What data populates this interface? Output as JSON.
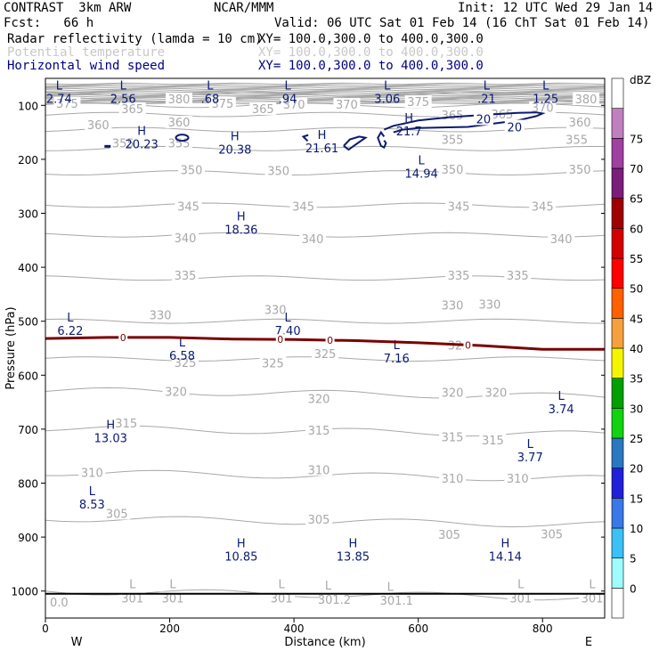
{
  "header": {
    "model": "CONTRAST  3km ARW",
    "org": "NCAR/MMM",
    "init": "Init: 12 UTC Wed 29 Jan 14",
    "fcst": "Fcst:   66 h",
    "valid": "Valid: 06 UTC Sat 01 Feb 14 (16 ChT Sat 01 Feb 14)",
    "field1": "Radar reflectivity (lamda = 10 cm)",
    "field1_xy": "XY= 100.0,300.0 to 400.0,300.0",
    "field2": "Potential temperature",
    "field2_xy": "XY= 100.0,300.0 to 400.0,300.0",
    "field3": "Horizontal wind speed",
    "field3_xy": "XY= 100.0,300.0 to 400.0,300.0"
  },
  "colors": {
    "theta": "#a8a8a8",
    "wind": "#0a1a70",
    "freezing": "#7a0000",
    "terrain": "#000000"
  },
  "chart_data": {
    "type": "cross-section",
    "title": "Radar reflectivity, Potential temperature, Horizontal wind speed",
    "xlabel": "Distance (km)",
    "ylabel": "Pressure (hPa)",
    "xlim": [
      0,
      900
    ],
    "ylim": [
      1050,
      50
    ],
    "x_ticks": [
      0,
      200,
      400,
      600,
      800
    ],
    "y_ticks": [
      100,
      200,
      300,
      400,
      500,
      600,
      700,
      800,
      900,
      1000
    ],
    "left_end": "W",
    "right_end": "E",
    "colorbar": {
      "unit": "dBZ",
      "levels": [
        0,
        5,
        10,
        15,
        20,
        25,
        30,
        35,
        40,
        45,
        50,
        55,
        60,
        65,
        70,
        75
      ],
      "colors": [
        "#ffffff",
        "#9ffcfc",
        "#3dc0f5",
        "#3a78e8",
        "#2020d8",
        "#2c78c0",
        "#12d212",
        "#00a000",
        "#f5f500",
        "#f5a040",
        "#ff6000",
        "#ff0000",
        "#d20000",
        "#a00000",
        "#7a1e7a",
        "#a040a0",
        "#c080c0",
        "#ffffff"
      ]
    },
    "theta_contours": [
      {
        "value": 300,
        "p": 1000
      },
      {
        "value": 305,
        "p": 865
      },
      {
        "value": 310,
        "p": 780
      },
      {
        "value": 315,
        "p": 698
      },
      {
        "value": 320,
        "p": 628
      },
      {
        "value": 325,
        "p": 570
      },
      {
        "value": 330,
        "p": 500
      },
      {
        "value": 335,
        "p": 420
      },
      {
        "value": 340,
        "p": 340
      },
      {
        "value": 345,
        "p": 285
      },
      {
        "value": 350,
        "p": 225
      },
      {
        "value": 355,
        "p": 180
      },
      {
        "value": 360,
        "p": 145
      },
      {
        "value": 365,
        "p": 117
      },
      {
        "value": 370,
        "p": 100
      },
      {
        "value": 375,
        "p": 90
      },
      {
        "value": 380,
        "p": 80
      }
    ],
    "theta_labels": [
      {
        "text": "375",
        "x": 35,
        "p": 96
      },
      {
        "text": "365",
        "x": 140,
        "p": 106
      },
      {
        "text": "380",
        "x": 215,
        "p": 88
      },
      {
        "text": "375",
        "x": 285,
        "p": 96
      },
      {
        "text": "365",
        "x": 350,
        "p": 106
      },
      {
        "text": "370",
        "x": 400,
        "p": 98
      },
      {
        "text": "370",
        "x": 485,
        "p": 98
      },
      {
        "text": "375",
        "x": 600,
        "p": 93
      },
      {
        "text": "365",
        "x": 735,
        "p": 116
      },
      {
        "text": "370",
        "x": 800,
        "p": 104
      },
      {
        "text": "380",
        "x": 870,
        "p": 88
      },
      {
        "text": "360",
        "x": 85,
        "p": 136
      },
      {
        "text": "360",
        "x": 215,
        "p": 131
      },
      {
        "text": "365",
        "x": 655,
        "p": 118
      },
      {
        "text": "360",
        "x": 860,
        "p": 131
      },
      {
        "text": "355",
        "x": 125,
        "p": 170
      },
      {
        "text": "355",
        "x": 215,
        "p": 170
      },
      {
        "text": "355",
        "x": 655,
        "p": 163
      },
      {
        "text": "355",
        "x": 855,
        "p": 163
      },
      {
        "text": "350",
        "x": 235,
        "p": 219
      },
      {
        "text": "350",
        "x": 375,
        "p": 221
      },
      {
        "text": "350",
        "x": 655,
        "p": 218
      },
      {
        "text": "350",
        "x": 860,
        "p": 218
      },
      {
        "text": "345",
        "x": 230,
        "p": 287
      },
      {
        "text": "345",
        "x": 415,
        "p": 287
      },
      {
        "text": "345",
        "x": 665,
        "p": 287
      },
      {
        "text": "345",
        "x": 800,
        "p": 287
      },
      {
        "text": "340",
        "x": 225,
        "p": 345
      },
      {
        "text": "340",
        "x": 430,
        "p": 347
      },
      {
        "text": "340",
        "x": 830,
        "p": 347
      },
      {
        "text": "335",
        "x": 225,
        "p": 415
      },
      {
        "text": "335",
        "x": 665,
        "p": 415
      },
      {
        "text": "335",
        "x": 760,
        "p": 415
      },
      {
        "text": "330",
        "x": 185,
        "p": 488
      },
      {
        "text": "330",
        "x": 370,
        "p": 478
      },
      {
        "text": "330",
        "x": 655,
        "p": 470
      },
      {
        "text": "330",
        "x": 715,
        "p": 468
      },
      {
        "text": "325",
        "x": 225,
        "p": 576
      },
      {
        "text": "325",
        "x": 366,
        "p": 577
      },
      {
        "text": "325",
        "x": 450,
        "p": 560
      },
      {
        "text": "325",
        "x": 665,
        "p": 544
      },
      {
        "text": "320",
        "x": 210,
        "p": 630
      },
      {
        "text": "320",
        "x": 440,
        "p": 643
      },
      {
        "text": "320",
        "x": 655,
        "p": 632
      },
      {
        "text": "320",
        "x": 725,
        "p": 632
      },
      {
        "text": "315",
        "x": 130,
        "p": 689
      },
      {
        "text": "315",
        "x": 440,
        "p": 702
      },
      {
        "text": "315",
        "x": 655,
        "p": 714
      },
      {
        "text": "315",
        "x": 720,
        "p": 720
      },
      {
        "text": "310",
        "x": 75,
        "p": 780
      },
      {
        "text": "310",
        "x": 440,
        "p": 775
      },
      {
        "text": "310",
        "x": 655,
        "p": 791
      },
      {
        "text": "310",
        "x": 760,
        "p": 791
      },
      {
        "text": "305",
        "x": 115,
        "p": 856
      },
      {
        "text": "305",
        "x": 440,
        "p": 867
      },
      {
        "text": "305",
        "x": 650,
        "p": 895
      },
      {
        "text": "305",
        "x": 815,
        "p": 894
      },
      {
        "text": "301",
        "x": 140,
        "p": 1013
      },
      {
        "text": "301",
        "x": 205,
        "p": 1013
      },
      {
        "text": "301",
        "x": 380,
        "p": 1013
      },
      {
        "text": "301.2",
        "x": 465,
        "p": 1015
      },
      {
        "text": "301.1",
        "x": 565,
        "p": 1017
      },
      {
        "text": "301",
        "x": 765,
        "p": 1013
      },
      {
        "text": "301",
        "x": 880,
        "p": 1013
      },
      {
        "text": "0.0",
        "x": 22,
        "p": 1020
      }
    ],
    "theta_extrema": [
      {
        "mark": "L",
        "x": 140,
        "p": 995
      },
      {
        "mark": "L",
        "x": 205,
        "p": 995
      },
      {
        "mark": "L",
        "x": 380,
        "p": 995
      },
      {
        "mark": "L",
        "x": 455,
        "p": 997
      },
      {
        "mark": "L",
        "x": 555,
        "p": 1000
      },
      {
        "mark": "L",
        "x": 765,
        "p": 995
      },
      {
        "mark": "L",
        "x": 880,
        "p": 995
      }
    ],
    "wind_contour_labels": [
      {
        "text": "20",
        "x": 705,
        "p": 125
      },
      {
        "text": "20",
        "x": 755,
        "p": 140
      }
    ],
    "wind_extrema": [
      {
        "mark": "L",
        "value": "2.74",
        "x": 22,
        "p": 87
      },
      {
        "mark": "L",
        "value": "2.56",
        "x": 125,
        "p": 87
      },
      {
        "mark": "L",
        "value": ".68",
        "x": 265,
        "p": 87
      },
      {
        "mark": "L",
        "value": ".94",
        "x": 390,
        "p": 87
      },
      {
        "mark": "L",
        "value": "3.06",
        "x": 550,
        "p": 87
      },
      {
        "mark": "L",
        "value": ".21",
        "x": 710,
        "p": 87
      },
      {
        "mark": "L",
        "value": "1.25",
        "x": 805,
        "p": 87
      },
      {
        "mark": "H",
        "value": "20.23",
        "x": 155,
        "p": 171
      },
      {
        "mark": "H",
        "value": "20.38",
        "x": 305,
        "p": 181
      },
      {
        "mark": "H",
        "value": "21.61",
        "x": 445,
        "p": 179
      },
      {
        "mark": "H",
        "value": "21.7",
        "x": 585,
        "p": 147
      },
      {
        "mark": "L",
        "value": "14.94",
        "x": 605,
        "p": 226
      },
      {
        "mark": "H",
        "value": "18.36",
        "x": 315,
        "p": 330
      },
      {
        "mark": "L",
        "value": "6.22",
        "x": 40,
        "p": 517
      },
      {
        "mark": "L",
        "value": "7.40",
        "x": 390,
        "p": 517
      },
      {
        "mark": "L",
        "value": "6.58",
        "x": 220,
        "p": 563
      },
      {
        "mark": "L",
        "value": "7.16",
        "x": 565,
        "p": 568
      },
      {
        "mark": "L",
        "value": "3.74",
        "x": 830,
        "p": 662
      },
      {
        "mark": "H",
        "value": "13.03",
        "x": 105,
        "p": 716
      },
      {
        "mark": "L",
        "value": "3.77",
        "x": 780,
        "p": 751
      },
      {
        "mark": "L",
        "value": "8.53",
        "x": 75,
        "p": 839
      },
      {
        "mark": "H",
        "value": "10.85",
        "x": 315,
        "p": 935
      },
      {
        "mark": "H",
        "value": "13.85",
        "x": 495,
        "p": 935
      },
      {
        "mark": "H",
        "value": "14.14",
        "x": 740,
        "p": 935
      }
    ],
    "freezing_level": {
      "label": "0",
      "x": [
        0,
        100,
        200,
        300,
        400,
        500,
        600,
        700,
        800,
        900
      ],
      "p": [
        532,
        530,
        530,
        533,
        534,
        536,
        540,
        545,
        552,
        552
      ],
      "label_x": [
        125,
        378,
        458,
        680
      ]
    },
    "terrain_p": 1005
  }
}
